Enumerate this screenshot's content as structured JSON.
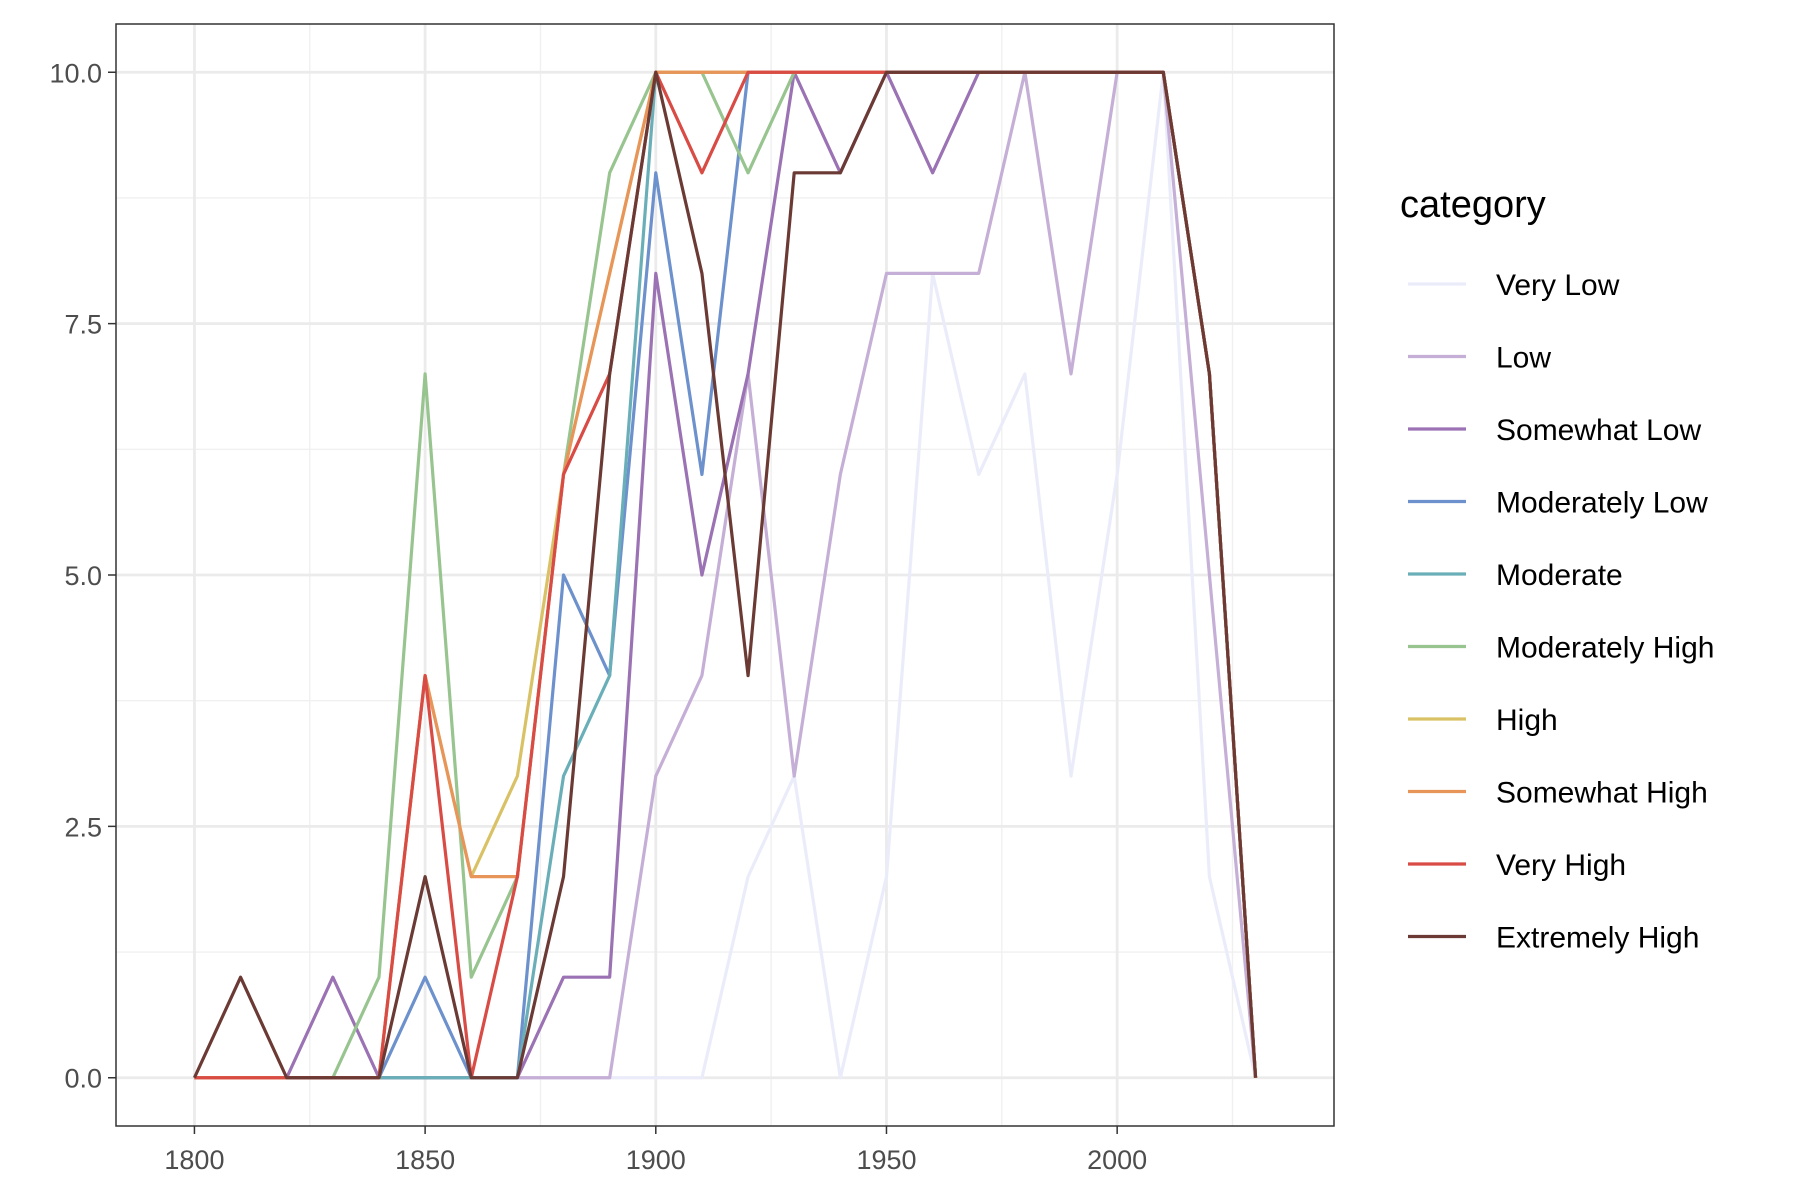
{
  "chart_data": {
    "type": "line",
    "title": "",
    "xlabel": "",
    "ylabel": "",
    "xlim": [
      1783,
      2047
    ],
    "ylim": [
      -0.48,
      10.48
    ],
    "x_ticks": [
      1800,
      1850,
      1900,
      1950,
      2000
    ],
    "y_ticks": [
      0,
      2.5,
      5,
      7.5,
      10
    ],
    "x_tick_labels": [
      "1800",
      "1850",
      "1900",
      "1950",
      "2000"
    ],
    "y_tick_labels": [
      "0.0",
      "2.5",
      "5.0",
      "7.5",
      "10.0"
    ],
    "grid": true,
    "legend": {
      "title": "category",
      "position": "right"
    },
    "x": [
      1800,
      1810,
      1820,
      1830,
      1840,
      1850,
      1860,
      1870,
      1880,
      1890,
      1900,
      1910,
      1920,
      1930,
      1940,
      1950,
      1960,
      1970,
      1980,
      1990,
      2000,
      2010,
      2020,
      2030
    ],
    "series": [
      {
        "name": "Very Low",
        "color": "#ebecfa",
        "values": [
          0,
          0,
          0,
          0,
          0,
          0,
          0,
          0,
          0,
          0,
          0,
          0,
          2,
          3,
          0,
          2,
          8,
          6,
          7,
          3,
          6,
          10,
          2,
          0
        ]
      },
      {
        "name": "Low",
        "color": "#c5afd6",
        "values": [
          0,
          0,
          0,
          0,
          0,
          0,
          0,
          0,
          0,
          0,
          3,
          4,
          7,
          3,
          6,
          8,
          8,
          8,
          10,
          7,
          10,
          10,
          5,
          0
        ]
      },
      {
        "name": "Somewhat Low",
        "color": "#9b72b3",
        "values": [
          0,
          0,
          0,
          1,
          0,
          0,
          0,
          0,
          1,
          1,
          8,
          5,
          7,
          10,
          9,
          10,
          9,
          10,
          10,
          10,
          10,
          10,
          7,
          0
        ]
      },
      {
        "name": "Moderately Low",
        "color": "#6d91cc",
        "values": [
          0,
          0,
          0,
          0,
          0,
          1,
          0,
          0,
          5,
          4,
          9,
          6,
          10,
          10,
          10,
          10,
          10,
          10,
          10,
          10,
          10,
          10,
          7,
          0
        ]
      },
      {
        "name": "Moderate",
        "color": "#6aafb8",
        "values": [
          0,
          0,
          0,
          0,
          0,
          0,
          0,
          0,
          3,
          4,
          10,
          10,
          10,
          10,
          10,
          10,
          10,
          10,
          10,
          10,
          10,
          10,
          7,
          0
        ]
      },
      {
        "name": "Moderately High",
        "color": "#98c48f",
        "values": [
          0,
          0,
          0,
          0,
          1,
          7,
          1,
          2,
          6,
          9,
          10,
          10,
          9,
          10,
          10,
          10,
          10,
          10,
          10,
          10,
          10,
          10,
          7,
          0
        ]
      },
      {
        "name": "High",
        "color": "#d9c265",
        "values": [
          0,
          0,
          0,
          0,
          0,
          4,
          2,
          3,
          6,
          8,
          10,
          10,
          10,
          10,
          10,
          10,
          10,
          10,
          10,
          10,
          10,
          10,
          7,
          0
        ]
      },
      {
        "name": "Somewhat High",
        "color": "#e8955a",
        "values": [
          0,
          0,
          0,
          0,
          0,
          4,
          2,
          2,
          6,
          8,
          10,
          10,
          10,
          10,
          10,
          10,
          10,
          10,
          10,
          10,
          10,
          10,
          7,
          0
        ]
      },
      {
        "name": "Very High",
        "color": "#d94b45",
        "values": [
          0,
          0,
          0,
          0,
          0,
          4,
          0,
          2,
          6,
          7,
          10,
          9,
          10,
          10,
          10,
          10,
          10,
          10,
          10,
          10,
          10,
          10,
          7,
          0
        ]
      },
      {
        "name": "Extremely High",
        "color": "#6b3a34",
        "values": [
          0,
          1,
          0,
          0,
          0,
          2,
          0,
          0,
          2,
          7,
          10,
          8,
          4,
          9,
          9,
          10,
          10,
          10,
          10,
          10,
          10,
          10,
          7,
          0
        ]
      }
    ]
  }
}
